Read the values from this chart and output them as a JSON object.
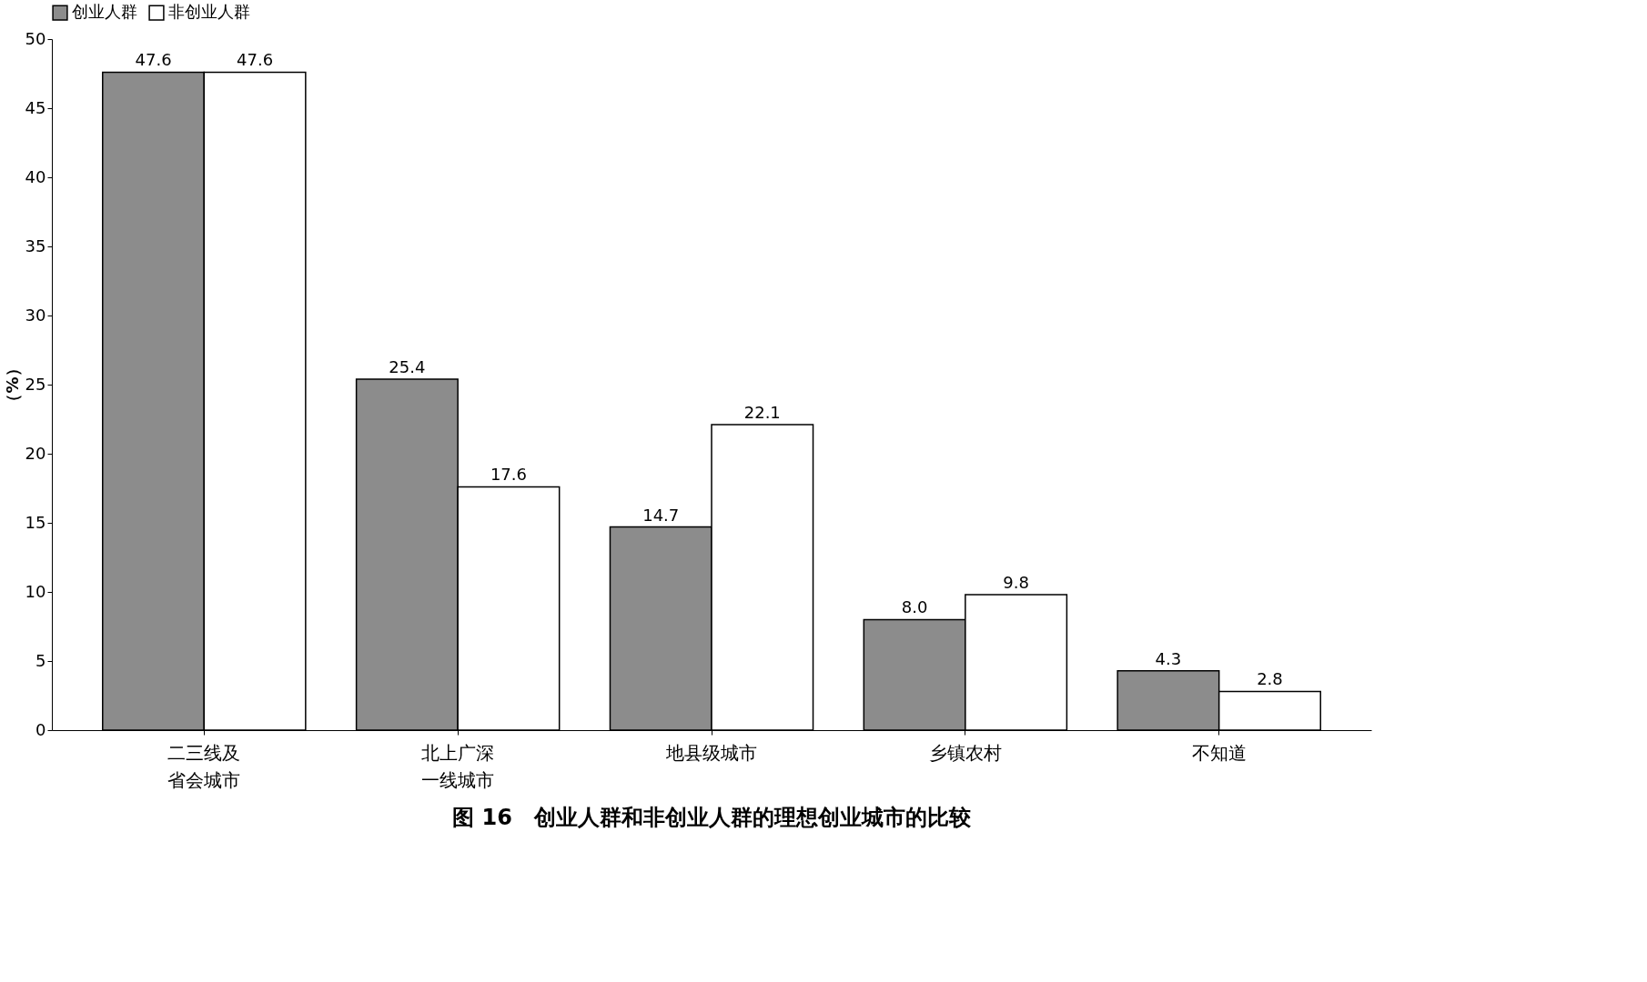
{
  "chart_data": {
    "type": "bar",
    "title": "图 16　创业人群和非创业人群的理想创业城市的比较",
    "ylabel": "（%）",
    "categories": [
      "二三线及省会城市",
      "北上广深一线城市",
      "地县级城市",
      "乡镇农村",
      "不知道"
    ],
    "series": [
      {
        "name": "创业人群",
        "color": "#8c8c8c",
        "values": [
          47.6,
          25.4,
          14.7,
          8.0,
          4.3
        ],
        "value_labels": [
          "47.6",
          "25.4",
          "14.7",
          "8.0",
          "4.3"
        ]
      },
      {
        "name": "非创业人群",
        "color": "#ffffff",
        "values": [
          47.6,
          17.6,
          22.1,
          9.8,
          2.8
        ],
        "value_labels": [
          "47.6",
          "17.6",
          "22.1",
          "9.8",
          "2.8"
        ]
      }
    ],
    "ylim": [
      0,
      50
    ],
    "yticks": [
      0,
      5,
      10,
      15,
      20,
      25,
      30,
      35,
      40,
      45,
      50
    ],
    "grid": false,
    "legend": "top left"
  }
}
